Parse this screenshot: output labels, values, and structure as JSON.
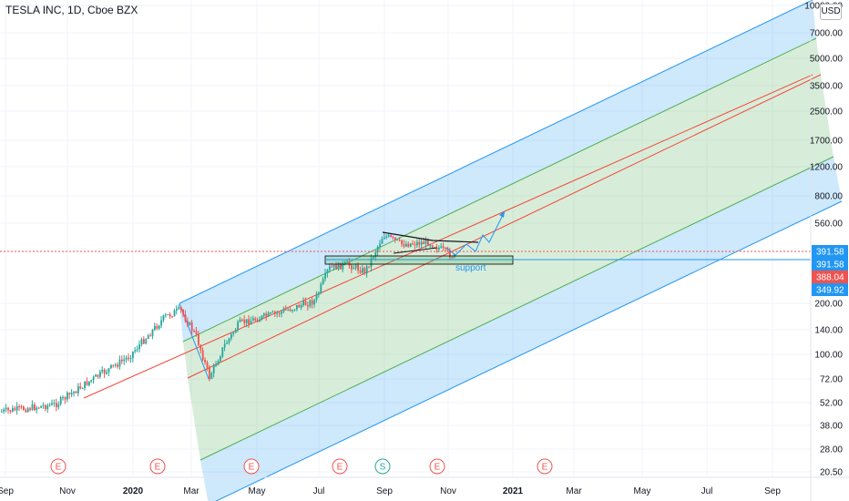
{
  "header": {
    "title": "TESLA INC, 1D, Cboe BZX",
    "currency": "USD"
  },
  "chart_data": {
    "type": "candlestick",
    "title": "TESLA INC, 1D, Cboe BZX",
    "y_scale": "log",
    "y_ticks": [
      "10000.00",
      "7000.00",
      "5000.00",
      "3500.00",
      "2500.00",
      "1700.00",
      "1200.00",
      "800.00",
      "560.00",
      "200.00",
      "140.00",
      "100.00",
      "72.00",
      "52.00",
      "38.00",
      "28.00",
      "20.50"
    ],
    "x_ticks": [
      "Sep",
      "Nov",
      "2020",
      "Mar",
      "May",
      "Jul",
      "Sep",
      "Nov",
      "2021",
      "Mar",
      "May",
      "Jul",
      "Sep"
    ],
    "price_labels": [
      {
        "value": "391.58",
        "color": "#2196f3"
      },
      {
        "value": "391.58",
        "color": "#2196f3"
      },
      {
        "value": "388.04",
        "color": "#ef5350"
      },
      {
        "value": "349.92",
        "color": "#2196f3"
      }
    ],
    "events": [
      {
        "label": "E",
        "x": "Oct 2019"
      },
      {
        "label": "E",
        "x": "Jan 2020"
      },
      {
        "label": "E",
        "x": "Apr 2020"
      },
      {
        "label": "E",
        "x": "Jul 2020"
      },
      {
        "label": "S",
        "x": "Aug 2020"
      },
      {
        "label": "E",
        "x": "Oct 2020"
      },
      {
        "label": "E",
        "x": "Jan 2021"
      }
    ],
    "annotations": [
      "support"
    ],
    "colors": {
      "up": "#26a69a",
      "down": "#ef5350",
      "channel_outer": "#2196f3",
      "channel_inner": "#4caf50",
      "median": "#f44336"
    }
  }
}
